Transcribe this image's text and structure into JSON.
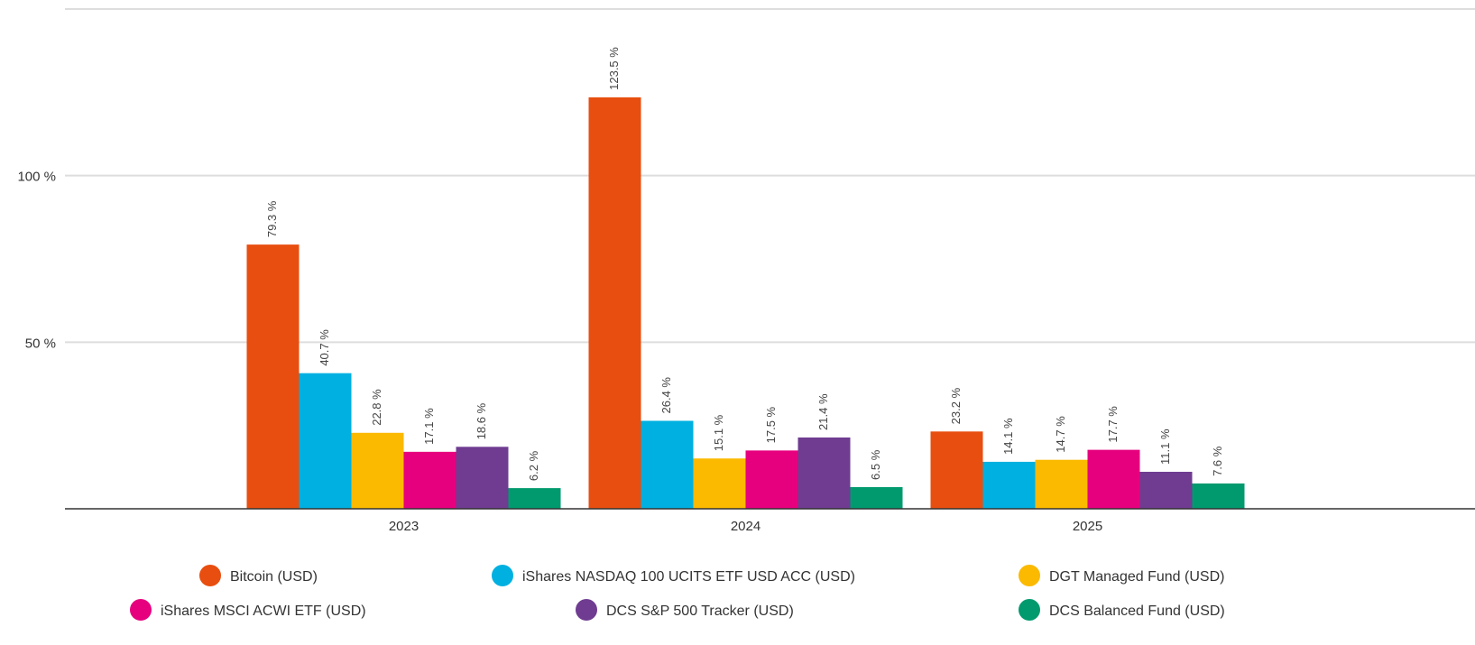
{
  "chart_data": {
    "type": "bar",
    "categories": [
      "2023",
      "2024",
      "2025"
    ],
    "ylim": [
      0,
      150
    ],
    "yticks": [
      {
        "value": 50,
        "label": "50 %"
      },
      {
        "value": 100,
        "label": "100 %"
      }
    ],
    "grid": true,
    "series": [
      {
        "name": "Bitcoin (USD)",
        "color": "#e84e0f",
        "values": [
          79.3,
          123.5,
          23.2
        ],
        "value_labels": [
          "79.3 %",
          "123.5 %",
          "23.2 %"
        ]
      },
      {
        "name": "iShares NASDAQ 100 UCITS ETF USD ACC (USD)",
        "color": "#00b0e0",
        "values": [
          40.7,
          26.4,
          14.1
        ],
        "value_labels": [
          "40.7 %",
          "26.4 %",
          "14.1 %"
        ]
      },
      {
        "name": "DGT Managed Fund (USD)",
        "color": "#fbb900",
        "values": [
          22.8,
          15.1,
          14.7
        ],
        "value_labels": [
          "22.8 %",
          "15.1 %",
          "14.7 %"
        ]
      },
      {
        "name": "iShares MSCI ACWI ETF (USD)",
        "color": "#e6007e",
        "values": [
          17.1,
          17.5,
          17.7
        ],
        "value_labels": [
          "17.1 %",
          "17.5 %",
          "17.7 %"
        ]
      },
      {
        "name": "DCS S&P 500 Tracker (USD)",
        "color": "#6f3c91",
        "values": [
          18.6,
          21.4,
          11.1
        ],
        "value_labels": [
          "18.6 %",
          "21.4 %",
          "11.1 %"
        ]
      },
      {
        "name": "DCS Balanced Fund (USD)",
        "color": "#009a6e",
        "values": [
          6.2,
          6.5,
          7.6
        ],
        "value_labels": [
          "6.2 %",
          "6.5 %",
          "7.6 %"
        ]
      }
    ]
  }
}
